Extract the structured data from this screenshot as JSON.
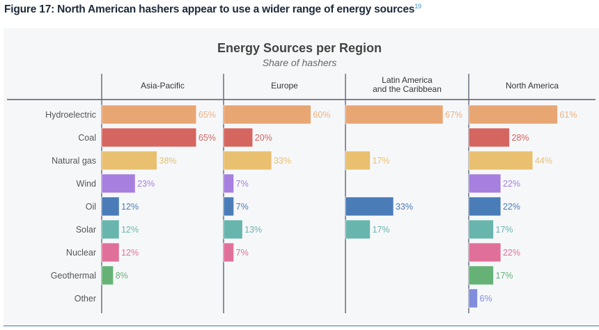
{
  "figure_title": "Figure 17: North American hashers appear to use a wider range of energy sources",
  "figure_footnote": "19",
  "chart_data": {
    "type": "bar",
    "orientation": "horizontal",
    "layout": "small-multiples",
    "title": "Energy Sources per Region",
    "subtitle": "Share of hashers",
    "categories": [
      "Hydroelectric",
      "Coal",
      "Natural gas",
      "Wind",
      "Oil",
      "Solar",
      "Nuclear",
      "Geothermal",
      "Other"
    ],
    "colors": [
      "#e8a673",
      "#d4665f",
      "#e8c070",
      "#a67fdf",
      "#4a7db8",
      "#68b5ae",
      "#e07099",
      "#66b276",
      "#7f8ddb"
    ],
    "label_colors": [
      "#eab284",
      "#d4665f",
      "#e8c070",
      "#a67fdf",
      "#4a7db8",
      "#68b5ae",
      "#e07099",
      "#66b276",
      "#7f8ddb"
    ],
    "unit": "%",
    "panels": [
      {
        "name": "Asia-Pacific",
        "values": [
          65,
          65,
          38,
          23,
          12,
          12,
          12,
          8,
          null
        ]
      },
      {
        "name": "Europe",
        "values": [
          60,
          20,
          33,
          7,
          7,
          13,
          7,
          null,
          null
        ]
      },
      {
        "name": "Latin America\nand the Caribbean",
        "values": [
          67,
          null,
          17,
          null,
          33,
          17,
          null,
          null,
          null
        ]
      },
      {
        "name": "North America",
        "values": [
          61,
          28,
          44,
          22,
          22,
          17,
          22,
          17,
          6
        ]
      }
    ],
    "grid": false,
    "legend": "none"
  }
}
